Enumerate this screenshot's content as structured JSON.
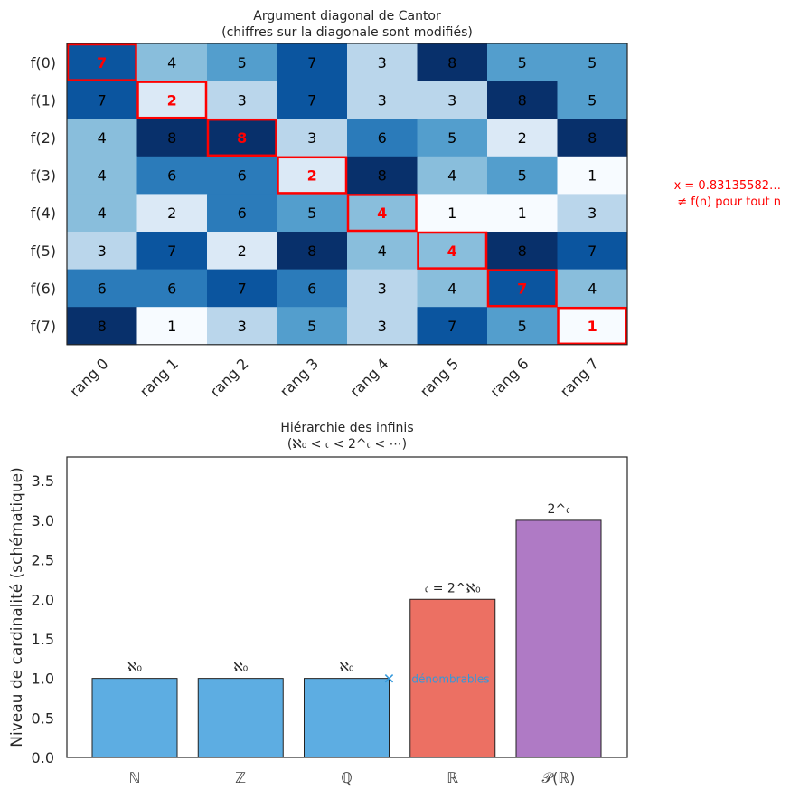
{
  "chart_data": [
    {
      "type": "heatmap",
      "title_line1": "Argument diagonal de Cantor",
      "title_line2": "(chiffres sur la diagonale sont modifiés)",
      "row_labels": [
        "f(0)",
        "f(1)",
        "f(2)",
        "f(3)",
        "f(4)",
        "f(5)",
        "f(6)",
        "f(7)"
      ],
      "col_labels": [
        "rang 0",
        "rang 1",
        "rang 2",
        "rang 3",
        "rang 4",
        "rang 5",
        "rang 6",
        "rang 7"
      ],
      "values": [
        [
          7,
          4,
          5,
          7,
          3,
          8,
          5,
          5
        ],
        [
          7,
          2,
          3,
          7,
          3,
          3,
          8,
          5
        ],
        [
          4,
          8,
          8,
          3,
          6,
          5,
          2,
          8
        ],
        [
          4,
          6,
          6,
          2,
          8,
          4,
          5,
          1
        ],
        [
          4,
          2,
          6,
          5,
          4,
          1,
          1,
          3
        ],
        [
          3,
          7,
          2,
          8,
          4,
          4,
          8,
          7
        ],
        [
          6,
          6,
          7,
          6,
          3,
          4,
          7,
          4
        ],
        [
          8,
          1,
          3,
          5,
          3,
          7,
          5,
          1
        ]
      ],
      "colormap": [
        "#f7fbff",
        "#dbe9f6",
        "#bad6eb",
        "#89bedc",
        "#539ecd",
        "#2b7bba",
        "#0b559f",
        "#08306b"
      ],
      "highlight_color": "#ff0000",
      "annotation_line1": "x = 0.83135582…",
      "annotation_line2": "≠ f(n) pour tout n"
    },
    {
      "type": "bar",
      "title_line1": "Hiérarchie des infinis",
      "title_line2": "(ℵ₀ < 𝔠 < 2^𝔠 < ⋯)",
      "ylabel": "Niveau de cardinalité (schématique)",
      "ylim": [
        0,
        3.8
      ],
      "yticks": [
        "0.0",
        "0.5",
        "1.0",
        "1.5",
        "2.0",
        "2.5",
        "3.0",
        "3.5"
      ],
      "categories": [
        "ℕ",
        "ℤ",
        "ℚ",
        "ℝ",
        "𝒫(ℝ)"
      ],
      "values": [
        1,
        1,
        1,
        2,
        3
      ],
      "bar_labels": [
        "ℵ₀",
        "ℵ₀",
        "ℵ₀",
        "𝔠 = 2^ℵ₀",
        "2^𝔠"
      ],
      "colors": [
        "#5dade2",
        "#5dade2",
        "#5dade2",
        "#ec7063",
        "#af7ac5"
      ],
      "marker": {
        "x": 2.4,
        "y": 1,
        "label": "dénombrables",
        "color": "#3498db"
      }
    }
  ]
}
